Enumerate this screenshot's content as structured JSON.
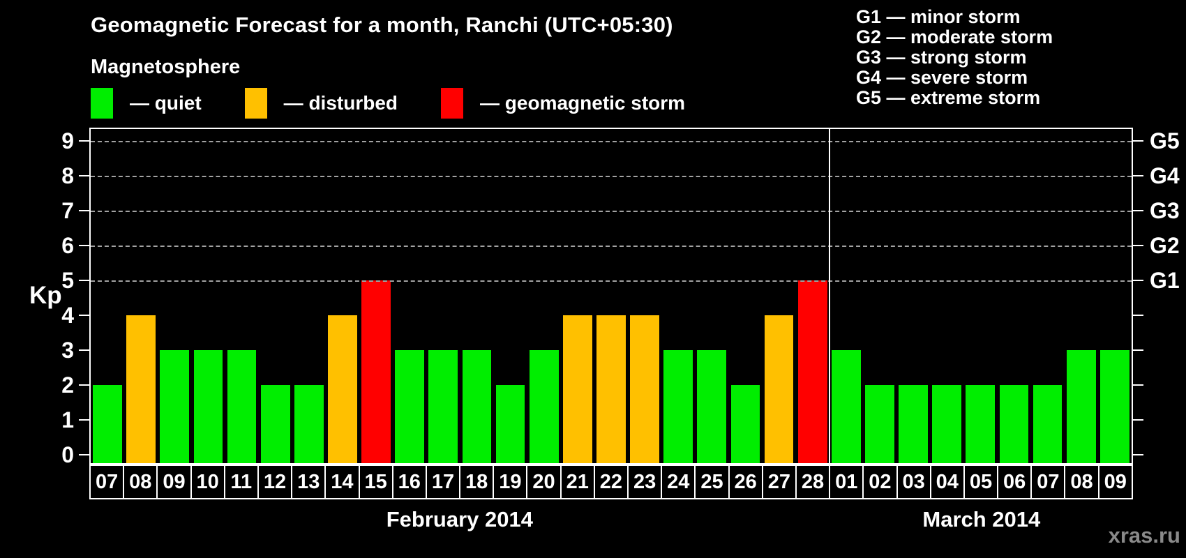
{
  "title": "Geomagnetic Forecast for a month, Ranchi (UTC+05:30)",
  "subtitle": "Magnetosphere",
  "legend": {
    "items": [
      {
        "key": "quiet",
        "label": "— quiet",
        "color": "#00EE00"
      },
      {
        "key": "disturbed",
        "label": "— disturbed",
        "color": "#FFC000"
      },
      {
        "key": "storm",
        "label": "— geomagnetic storm",
        "color": "#FF0000"
      }
    ]
  },
  "storm_scale_legend": [
    "G1 — minor storm",
    "G2 — moderate storm",
    "G3 — strong storm",
    "G4 — severe storm",
    "G5 — extreme storm"
  ],
  "watermark": "xras.ru",
  "chart_data": {
    "type": "bar",
    "title": "Geomagnetic Forecast for a month, Ranchi (UTC+05:30)",
    "xlabel": "",
    "ylabel": "Kp",
    "ylim": [
      0,
      9
    ],
    "yticks": [
      0,
      1,
      2,
      3,
      4,
      5,
      6,
      7,
      8,
      9
    ],
    "grid": "horizontal dashed lines at Kp 5-9 (G1-G5 levels)",
    "grid_levels_kp": [
      5,
      6,
      7,
      8,
      9
    ],
    "right_axis": [
      {
        "kp": 5,
        "label": "G1"
      },
      {
        "kp": 6,
        "label": "G2"
      },
      {
        "kp": 7,
        "label": "G3"
      },
      {
        "kp": 8,
        "label": "G4"
      },
      {
        "kp": 9,
        "label": "G5"
      }
    ],
    "state_colors": {
      "quiet": "#00EE00",
      "disturbed": "#FFC000",
      "storm": "#FF0000"
    },
    "legend_position": "top-left",
    "months": [
      {
        "label": "February 2014",
        "days": [
          {
            "day": "07",
            "kp": 2,
            "state": "quiet"
          },
          {
            "day": "08",
            "kp": 4,
            "state": "disturbed"
          },
          {
            "day": "09",
            "kp": 3,
            "state": "quiet"
          },
          {
            "day": "10",
            "kp": 3,
            "state": "quiet"
          },
          {
            "day": "11",
            "kp": 3,
            "state": "quiet"
          },
          {
            "day": "12",
            "kp": 2,
            "state": "quiet"
          },
          {
            "day": "13",
            "kp": 2,
            "state": "quiet"
          },
          {
            "day": "14",
            "kp": 4,
            "state": "disturbed"
          },
          {
            "day": "15",
            "kp": 5,
            "state": "storm"
          },
          {
            "day": "16",
            "kp": 3,
            "state": "quiet"
          },
          {
            "day": "17",
            "kp": 3,
            "state": "quiet"
          },
          {
            "day": "18",
            "kp": 3,
            "state": "quiet"
          },
          {
            "day": "19",
            "kp": 2,
            "state": "quiet"
          },
          {
            "day": "20",
            "kp": 3,
            "state": "quiet"
          },
          {
            "day": "21",
            "kp": 4,
            "state": "disturbed"
          },
          {
            "day": "22",
            "kp": 4,
            "state": "disturbed"
          },
          {
            "day": "23",
            "kp": 4,
            "state": "disturbed"
          },
          {
            "day": "24",
            "kp": 3,
            "state": "quiet"
          },
          {
            "day": "25",
            "kp": 3,
            "state": "quiet"
          },
          {
            "day": "26",
            "kp": 2,
            "state": "quiet"
          },
          {
            "day": "27",
            "kp": 4,
            "state": "disturbed"
          },
          {
            "day": "28",
            "kp": 5,
            "state": "storm"
          }
        ]
      },
      {
        "label": "March 2014",
        "days": [
          {
            "day": "01",
            "kp": 3,
            "state": "quiet"
          },
          {
            "day": "02",
            "kp": 2,
            "state": "quiet"
          },
          {
            "day": "03",
            "kp": 2,
            "state": "quiet"
          },
          {
            "day": "04",
            "kp": 2,
            "state": "quiet"
          },
          {
            "day": "05",
            "kp": 2,
            "state": "quiet"
          },
          {
            "day": "06",
            "kp": 2,
            "state": "quiet"
          },
          {
            "day": "07",
            "kp": 2,
            "state": "quiet"
          },
          {
            "day": "08",
            "kp": 3,
            "state": "quiet"
          },
          {
            "day": "09",
            "kp": 3,
            "state": "quiet"
          }
        ]
      }
    ]
  }
}
